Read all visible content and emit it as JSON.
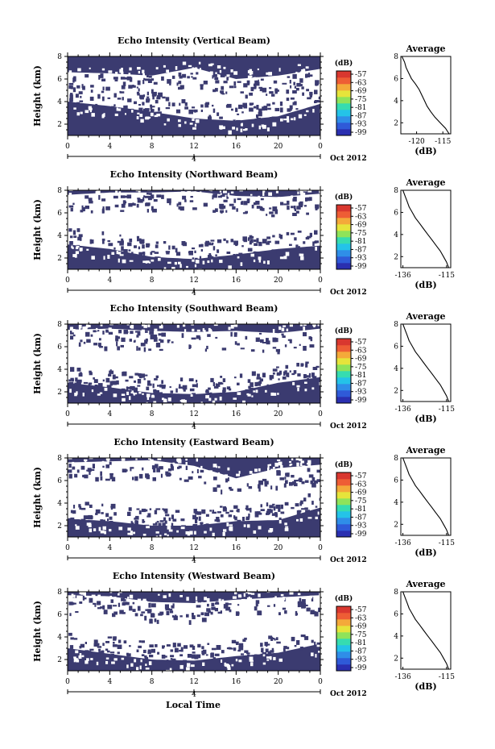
{
  "figure": {
    "xlabel": "Local Time"
  },
  "colors": {
    "echo_fill": "#3b3b70",
    "colorbar": [
      "#2a2fb0",
      "#2f5ad8",
      "#2f8ee8",
      "#24c3e8",
      "#36dcb0",
      "#8fe35a",
      "#e6e43b",
      "#f4a93a",
      "#ee5d35",
      "#d9372f"
    ]
  },
  "chart_data": [
    {
      "type": "heatmap",
      "title": "Echo Intensity (Vertical Beam)",
      "ylabel": "Height (km)",
      "ylim": [
        1,
        8
      ],
      "yticks": [
        "2",
        "4",
        "6",
        "8"
      ],
      "xlim": [
        0,
        24
      ],
      "xticks": [
        "0",
        "4",
        "8",
        "12",
        "16",
        "20",
        "0"
      ],
      "date_tick": "4",
      "date_label": "Oct 2012",
      "colorbar": {
        "unit": "(dB)",
        "ticks": [
          "-57",
          "-63",
          "-69",
          "-75",
          "-81",
          "-87",
          "-93",
          "-99"
        ]
      },
      "echo_layers": {
        "bottom_top_km": [
          [
            0,
            4.0
          ],
          [
            4,
            3.6
          ],
          [
            8,
            3.1
          ],
          [
            12,
            2.5
          ],
          [
            16,
            2.3
          ],
          [
            20,
            2.7
          ],
          [
            24,
            3.8
          ]
        ],
        "upper_bottom_km": [
          [
            0,
            6.6
          ],
          [
            4,
            6.5
          ],
          [
            8,
            6.3
          ],
          [
            12,
            7.0
          ],
          [
            16,
            6.0
          ],
          [
            20,
            6.3
          ],
          [
            24,
            6.9
          ]
        ]
      },
      "profile": {
        "title": "Average",
        "xlabel": "(dB)",
        "xticks": [
          "-120",
          "-115"
        ],
        "yticks": [
          "2",
          "4",
          "6",
          "8"
        ],
        "x_range": [
          -123,
          -113.5
        ],
        "x_at_heights": [
          -113.8,
          -114.5,
          -115.5,
          -116.5,
          -117.3,
          -118,
          -118.5,
          -119,
          -119.5,
          -120.2,
          -121,
          -121.5,
          -122,
          -122.3,
          -122.8
        ]
      }
    },
    {
      "type": "heatmap",
      "title": "Echo Intensity (Northward Beam)",
      "ylabel": "Height (km)",
      "ylim": [
        1,
        8
      ],
      "yticks": [
        "2",
        "4",
        "6",
        "8"
      ],
      "xlim": [
        0,
        24
      ],
      "xticks": [
        "0",
        "4",
        "8",
        "12",
        "16",
        "20",
        "0"
      ],
      "date_tick": "4",
      "date_label": "Oct 2012",
      "colorbar": {
        "unit": "(dB)",
        "ticks": [
          "-57",
          "-63",
          "-69",
          "-75",
          "-81",
          "-87",
          "-93",
          "-99"
        ]
      },
      "echo_layers": {
        "bottom_top_km": [
          [
            0,
            3.2
          ],
          [
            4,
            2.8
          ],
          [
            8,
            2.1
          ],
          [
            12,
            1.9
          ],
          [
            16,
            2.3
          ],
          [
            20,
            2.8
          ],
          [
            24,
            3.1
          ]
        ],
        "upper_bottom_km": [
          [
            0,
            7.6
          ],
          [
            4,
            7.8
          ],
          [
            8,
            7.8
          ],
          [
            12,
            7.9
          ],
          [
            16,
            7.5
          ],
          [
            20,
            7.4
          ],
          [
            24,
            7.7
          ]
        ]
      },
      "profile": {
        "title": "Average",
        "xlabel": "(dB)",
        "xticks": [
          "-136",
          "-115"
        ],
        "yticks": [
          "2",
          "4",
          "6",
          "8"
        ],
        "x_range": [
          -137,
          -113
        ],
        "x_at_heights": [
          -114,
          -115,
          -116.5,
          -118,
          -120,
          -122,
          -124,
          -126,
          -128,
          -130,
          -131.5,
          -133,
          -134,
          -135,
          -136
        ]
      }
    },
    {
      "type": "heatmap",
      "title": "Echo Intensity (Southward Beam)",
      "ylabel": "Height (km)",
      "ylim": [
        1,
        8
      ],
      "yticks": [
        "2",
        "4",
        "6",
        "8"
      ],
      "xlim": [
        0,
        24
      ],
      "xticks": [
        "0",
        "4",
        "8",
        "12",
        "16",
        "20",
        "0"
      ],
      "date_tick": "4",
      "date_label": "Oct 2012",
      "colorbar": {
        "unit": "(dB)",
        "ticks": [
          "-57",
          "-63",
          "-69",
          "-75",
          "-81",
          "-87",
          "-93",
          "-99"
        ]
      },
      "echo_layers": {
        "bottom_top_km": [
          [
            0,
            2.8
          ],
          [
            4,
            2.4
          ],
          [
            8,
            1.9
          ],
          [
            12,
            1.8
          ],
          [
            16,
            2.0
          ],
          [
            20,
            2.8
          ],
          [
            24,
            3.3
          ]
        ],
        "upper_bottom_km": [
          [
            0,
            7.5
          ],
          [
            4,
            7.6
          ],
          [
            8,
            7.4
          ],
          [
            12,
            7.3
          ],
          [
            16,
            7.4
          ],
          [
            20,
            7.2
          ],
          [
            24,
            7.6
          ]
        ]
      },
      "profile": {
        "title": "Average",
        "xlabel": "(dB)",
        "xticks": [
          "-136",
          "-115"
        ],
        "yticks": [
          "2",
          "4",
          "6",
          "8"
        ],
        "x_range": [
          -137,
          -113
        ],
        "x_at_heights": [
          -114,
          -115,
          -116.5,
          -118,
          -120,
          -122,
          -124,
          -126,
          -128,
          -130,
          -131.5,
          -133,
          -134,
          -135,
          -136
        ]
      }
    },
    {
      "type": "heatmap",
      "title": "Echo Intensity (Eastward Beam)",
      "ylabel": "Height (km)",
      "ylim": [
        1,
        8
      ],
      "yticks": [
        "2",
        "4",
        "6",
        "8"
      ],
      "xlim": [
        0,
        24
      ],
      "xticks": [
        "0",
        "4",
        "8",
        "12",
        "16",
        "20",
        "0"
      ],
      "date_tick": "4",
      "date_label": "Oct 2012",
      "colorbar": {
        "unit": "(dB)",
        "ticks": [
          "-57",
          "-63",
          "-69",
          "-75",
          "-81",
          "-87",
          "-93",
          "-99"
        ]
      },
      "echo_layers": {
        "bottom_top_km": [
          [
            0,
            2.6
          ],
          [
            4,
            2.4
          ],
          [
            8,
            2.0
          ],
          [
            12,
            2.0
          ],
          [
            16,
            2.4
          ],
          [
            20,
            2.5
          ],
          [
            24,
            3.6
          ]
        ],
        "upper_bottom_km": [
          [
            0,
            7.6
          ],
          [
            4,
            7.7
          ],
          [
            8,
            7.8
          ],
          [
            12,
            7.3
          ],
          [
            16,
            6.2
          ],
          [
            20,
            7.1
          ],
          [
            24,
            7.4
          ]
        ]
      },
      "profile": {
        "title": "Average",
        "xlabel": "(dB)",
        "xticks": [
          "-136",
          "-115"
        ],
        "yticks": [
          "2",
          "4",
          "6",
          "8"
        ],
        "x_range": [
          -137,
          -113
        ],
        "x_at_heights": [
          -114,
          -115,
          -116.5,
          -118,
          -120,
          -122,
          -124,
          -126,
          -128,
          -130,
          -131.5,
          -133,
          -134,
          -135,
          -136
        ]
      }
    },
    {
      "type": "heatmap",
      "title": "Echo Intensity (Westward Beam)",
      "ylabel": "Height (km)",
      "ylim": [
        1,
        8
      ],
      "yticks": [
        "2",
        "4",
        "6",
        "8"
      ],
      "xlim": [
        0,
        24
      ],
      "xticks": [
        "0",
        "4",
        "8",
        "12",
        "16",
        "20",
        "0"
      ],
      "date_tick": "4",
      "date_label": "Oct 2012",
      "colorbar": {
        "unit": "(dB)",
        "ticks": [
          "-57",
          "-63",
          "-69",
          "-75",
          "-81",
          "-87",
          "-93",
          "-99"
        ]
      },
      "echo_layers": {
        "bottom_top_km": [
          [
            0,
            3.0
          ],
          [
            4,
            2.5
          ],
          [
            8,
            2.0
          ],
          [
            12,
            1.9
          ],
          [
            16,
            2.3
          ],
          [
            20,
            2.6
          ],
          [
            24,
            3.4
          ]
        ],
        "upper_bottom_km": [
          [
            0,
            7.7
          ],
          [
            4,
            7.6
          ],
          [
            8,
            7.1
          ],
          [
            12,
            7.0
          ],
          [
            16,
            7.3
          ],
          [
            20,
            7.5
          ],
          [
            24,
            7.7
          ]
        ]
      },
      "profile": {
        "title": "Average",
        "xlabel": "(dB)",
        "xticks": [
          "-136",
          "-115"
        ],
        "yticks": [
          "2",
          "4",
          "6",
          "8"
        ],
        "x_range": [
          -137,
          -113
        ],
        "x_at_heights": [
          -114,
          -115,
          -116.5,
          -118,
          -120,
          -122,
          -124,
          -126,
          -128,
          -130,
          -131.5,
          -133,
          -134,
          -135,
          -136
        ]
      }
    }
  ]
}
